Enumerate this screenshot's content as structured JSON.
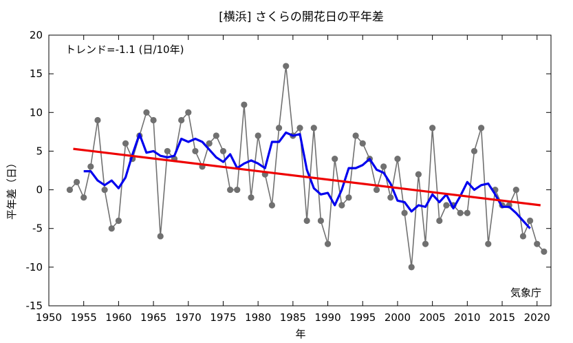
{
  "chart_data": {
    "type": "line",
    "title": "[横浜] さくらの開花日の平年差",
    "xlabel": "年",
    "ylabel": "平年差（日）",
    "xlim": [
      1950,
      2022
    ],
    "ylim": [
      -15,
      20
    ],
    "x_ticks": [
      1950,
      1955,
      1960,
      1965,
      1970,
      1975,
      1980,
      1985,
      1990,
      1995,
      2000,
      2005,
      2010,
      2015,
      2020
    ],
    "y_ticks": [
      -15,
      -10,
      -5,
      0,
      5,
      10,
      15,
      20
    ],
    "annotation": "トレンド=-1.1 (日/10年)",
    "credit": "気象庁",
    "grid": false,
    "series": [
      {
        "kind": "annual",
        "color": "#707070",
        "x": [
          1953,
          1954,
          1955,
          1956,
          1957,
          1958,
          1959,
          1960,
          1961,
          1962,
          1963,
          1964,
          1965,
          1966,
          1967,
          1968,
          1969,
          1970,
          1971,
          1972,
          1973,
          1974,
          1975,
          1976,
          1977,
          1978,
          1979,
          1980,
          1981,
          1982,
          1983,
          1984,
          1985,
          1986,
          1987,
          1988,
          1989,
          1990,
          1991,
          1992,
          1993,
          1994,
          1995,
          1996,
          1997,
          1998,
          1999,
          2000,
          2001,
          2002,
          2003,
          2004,
          2005,
          2006,
          2007,
          2008,
          2009,
          2010,
          2011,
          2012,
          2013,
          2014,
          2015,
          2016,
          2017,
          2018,
          2019,
          2020,
          2021
        ],
        "y": [
          0,
          1,
          -1,
          3,
          9,
          0,
          -5,
          -4,
          6,
          4,
          7,
          10,
          9,
          -6,
          5,
          4,
          9,
          10,
          5,
          3,
          6,
          7,
          5,
          0,
          0,
          11,
          -1,
          7,
          2,
          -2,
          8,
          16,
          7,
          8,
          -4,
          8,
          -4,
          -7,
          4,
          -2,
          -1,
          7,
          6,
          4,
          0,
          3,
          -1,
          4,
          -3,
          -10,
          2,
          -7,
          8,
          -4,
          -2,
          -2,
          -3,
          -3,
          5,
          8,
          -7,
          0,
          -2,
          -2,
          0,
          -6,
          -4,
          -7,
          -8
        ]
      },
      {
        "kind": "moving-average",
        "color": "#0000ee",
        "x": [
          1955,
          1956,
          1957,
          1958,
          1959,
          1960,
          1961,
          1962,
          1963,
          1964,
          1965,
          1966,
          1967,
          1968,
          1969,
          1970,
          1971,
          1972,
          1973,
          1974,
          1975,
          1976,
          1977,
          1978,
          1979,
          1980,
          1981,
          1982,
          1983,
          1984,
          1985,
          1986,
          1987,
          1988,
          1989,
          1990,
          1991,
          1992,
          1993,
          1994,
          1995,
          1996,
          1997,
          1998,
          1999,
          2000,
          2001,
          2002,
          2003,
          2004,
          2005,
          2006,
          2007,
          2008,
          2009,
          2010,
          2011,
          2012,
          2013,
          2014,
          2015,
          2016,
          2017,
          2018,
          2019
        ],
        "y": [
          2.4,
          2.4,
          1.2,
          0.6,
          1.2,
          0.2,
          1.6,
          4.6,
          7.2,
          4.8,
          5.0,
          4.4,
          4.2,
          4.4,
          6.6,
          6.2,
          6.6,
          6.2,
          5.2,
          4.2,
          3.6,
          4.6,
          2.8,
          3.4,
          3.8,
          3.4,
          2.8,
          6.2,
          6.2,
          7.4,
          7.0,
          7.2,
          2.6,
          0.2,
          -0.6,
          -0.4,
          -2.0,
          0.0,
          2.8,
          2.8,
          3.2,
          4.0,
          2.6,
          2.2,
          0.8,
          -1.4,
          -1.6,
          -2.8,
          -2.0,
          -2.2,
          -0.6,
          -1.6,
          -0.6,
          -2.4,
          -0.8,
          1.0,
          0.0,
          0.6,
          0.8,
          -0.6,
          -2.2,
          -2.2,
          -3.0,
          -4.0,
          -5.0
        ]
      },
      {
        "kind": "trend",
        "color": "#ee0000",
        "x": [
          1953.5,
          2020.5
        ],
        "y": [
          5.3,
          -2.0
        ]
      }
    ]
  }
}
